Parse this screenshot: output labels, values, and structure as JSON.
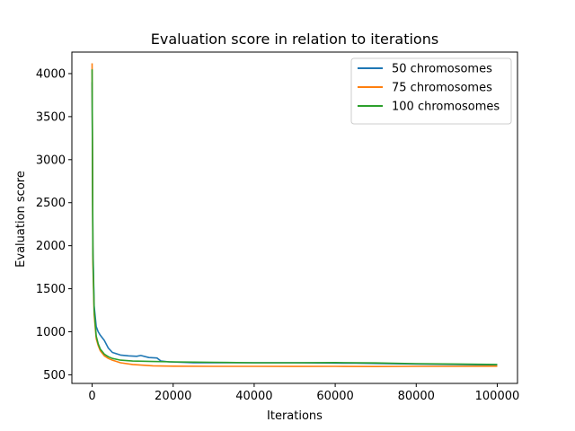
{
  "chart_data": {
    "type": "line",
    "title": "Evaluation score in relation to iterations",
    "xlabel": "Iterations",
    "ylabel": "Evaluation score",
    "xlim": [
      -5000,
      105000
    ],
    "ylim": [
      400,
      4250
    ],
    "xticks": [
      0,
      20000,
      40000,
      60000,
      80000,
      100000
    ],
    "yticks": [
      500,
      1000,
      1500,
      2000,
      2500,
      3000,
      3500,
      4000
    ],
    "grid": false,
    "legend_position": "top-right",
    "series": [
      {
        "name": "50 chromosomes",
        "color": "#1f77b4",
        "x": [
          0,
          200,
          500,
          1000,
          1500,
          2000,
          3000,
          4000,
          5000,
          7000,
          9000,
          11000,
          12000,
          14000,
          16000,
          17000,
          19000,
          25000,
          35000,
          50000,
          65000,
          80000,
          100000
        ],
        "y": [
          3900,
          2000,
          1300,
          1060,
          1000,
          960,
          900,
          810,
          760,
          730,
          720,
          715,
          725,
          700,
          695,
          660,
          650,
          640,
          640,
          640,
          635,
          625,
          615
        ]
      },
      {
        "name": "75 chromosomes",
        "color": "#ff7f0e",
        "x": [
          0,
          200,
          500,
          1000,
          1500,
          2000,
          3000,
          4000,
          5000,
          7000,
          10000,
          15000,
          20000,
          30000,
          40000,
          50000,
          60000,
          70000,
          80000,
          90000,
          100000
        ],
        "y": [
          4120,
          1800,
          1200,
          920,
          840,
          780,
          720,
          690,
          670,
          640,
          620,
          605,
          600,
          598,
          598,
          597,
          598,
          596,
          598,
          598,
          600
        ]
      },
      {
        "name": "100 chromosomes",
        "color": "#2ca02c",
        "x": [
          0,
          200,
          500,
          1000,
          1500,
          2000,
          3000,
          4000,
          5000,
          7000,
          10000,
          15000,
          20000,
          30000,
          40000,
          50000,
          60000,
          70000,
          80000,
          90000,
          100000
        ],
        "y": [
          4050,
          1900,
          1250,
          950,
          860,
          800,
          740,
          710,
          690,
          670,
          660,
          655,
          650,
          645,
          640,
          640,
          642,
          638,
          630,
          625,
          620
        ]
      }
    ]
  }
}
